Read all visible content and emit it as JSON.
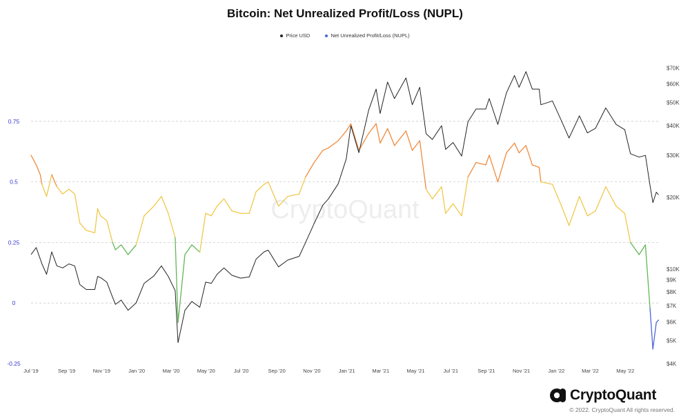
{
  "title": "Bitcoin: Net Unrealized Profit/Loss (NUPL)",
  "legend": [
    {
      "label": "Price USD",
      "color": "#222222"
    },
    {
      "label": "Net Unrealized Profit/Loss (NUPL)",
      "color": "#4a66d6"
    }
  ],
  "watermark": "CryptoQuant",
  "logo_text": "CryptoQuant",
  "logo_icon": "cryptoquant-logo-icon",
  "copyright": "© 2022. CryptoQuant All rights reserved.",
  "colors": {
    "price_line": "#222222",
    "nupl_orange": "#f08a3c",
    "nupl_yellow": "#f0c84a",
    "nupl_green": "#62b556",
    "nupl_blue": "#4a66d6",
    "left_axis_labels": "#3b3bd0",
    "grid": "#cccccc"
  },
  "chart_data": {
    "type": "line",
    "title": "Bitcoin: Net Unrealized Profit/Loss (NUPL)",
    "x_axis": {
      "type": "date",
      "range": [
        "2019-07-01",
        "2022-07-01"
      ],
      "ticks": [
        "Jul '19",
        "Sep '19",
        "Nov '19",
        "Jan '20",
        "Mar '20",
        "May '20",
        "Jul '20",
        "Sep '20",
        "Nov '20",
        "Jan '21",
        "Mar '21",
        "May '21",
        "Jul '21",
        "Sep '21",
        "Nov '21",
        "Jan '22",
        "Mar '22",
        "May '22"
      ]
    },
    "y_left": {
      "label": "",
      "range": [
        -0.25,
        1.0
      ],
      "ticks": [
        "0.75",
        "0.5",
        "0.25",
        "0",
        "-0.25"
      ]
    },
    "y_right": {
      "label": "",
      "scale": "log",
      "range": [
        4000,
        75000
      ],
      "ticks": [
        "$70K",
        "$60K",
        "$50K",
        "$40K",
        "$30K",
        "$20K",
        "$10K",
        "$9K",
        "$8K",
        "$7K",
        "$6K",
        "$5K",
        "$4K"
      ]
    },
    "grid": "horizontal dashed",
    "legend_position": "top-center",
    "nupl_color_zones": [
      {
        "from": -1,
        "to": 0,
        "color": "blue"
      },
      {
        "from": 0,
        "to": 0.25,
        "color": "green"
      },
      {
        "from": 0.25,
        "to": 0.5,
        "color": "yellow"
      },
      {
        "from": 0.5,
        "to": 0.75,
        "color": "orange"
      }
    ],
    "series": [
      {
        "name": "Price USD",
        "axis": "right",
        "points": [
          [
            "2019-07-01",
            11500
          ],
          [
            "2019-07-10",
            12300
          ],
          [
            "2019-07-20",
            10500
          ],
          [
            "2019-07-28",
            9500
          ],
          [
            "2019-08-06",
            11800
          ],
          [
            "2019-08-15",
            10300
          ],
          [
            "2019-08-25",
            10100
          ],
          [
            "2019-09-05",
            10500
          ],
          [
            "2019-09-15",
            10300
          ],
          [
            "2019-09-24",
            8600
          ],
          [
            "2019-10-05",
            8200
          ],
          [
            "2019-10-20",
            8200
          ],
          [
            "2019-10-25",
            9300
          ],
          [
            "2019-10-30",
            9200
          ],
          [
            "2019-11-10",
            8800
          ],
          [
            "2019-11-20",
            7600
          ],
          [
            "2019-11-25",
            7100
          ],
          [
            "2019-12-05",
            7400
          ],
          [
            "2019-12-17",
            6700
          ],
          [
            "2019-12-31",
            7200
          ],
          [
            "2020-01-14",
            8700
          ],
          [
            "2020-01-31",
            9350
          ],
          [
            "2020-02-13",
            10300
          ],
          [
            "2020-02-25",
            9300
          ],
          [
            "2020-03-08",
            8100
          ],
          [
            "2020-03-13",
            4900
          ],
          [
            "2020-03-25",
            6700
          ],
          [
            "2020-04-06",
            7300
          ],
          [
            "2020-04-20",
            6900
          ],
          [
            "2020-04-30",
            8800
          ],
          [
            "2020-05-10",
            8700
          ],
          [
            "2020-05-20",
            9500
          ],
          [
            "2020-06-01",
            10100
          ],
          [
            "2020-06-15",
            9400
          ],
          [
            "2020-06-30",
            9150
          ],
          [
            "2020-07-15",
            9250
          ],
          [
            "2020-07-27",
            11000
          ],
          [
            "2020-08-10",
            11800
          ],
          [
            "2020-08-17",
            12000
          ],
          [
            "2020-09-04",
            10200
          ],
          [
            "2020-09-20",
            10900
          ],
          [
            "2020-10-10",
            11300
          ],
          [
            "2020-10-21",
            12900
          ],
          [
            "2020-11-05",
            15500
          ],
          [
            "2020-11-20",
            18500
          ],
          [
            "2020-11-30",
            19700
          ],
          [
            "2020-12-17",
            22800
          ],
          [
            "2020-12-31",
            29000
          ],
          [
            "2021-01-08",
            40000
          ],
          [
            "2021-01-22",
            30800
          ],
          [
            "2021-02-08",
            46500
          ],
          [
            "2021-02-21",
            57000
          ],
          [
            "2021-02-28",
            45000
          ],
          [
            "2021-03-13",
            61000
          ],
          [
            "2021-03-25",
            52000
          ],
          [
            "2021-04-14",
            63500
          ],
          [
            "2021-04-25",
            49000
          ],
          [
            "2021-05-08",
            58000
          ],
          [
            "2021-05-19",
            37000
          ],
          [
            "2021-05-30",
            35000
          ],
          [
            "2021-06-15",
            40000
          ],
          [
            "2021-06-22",
            31800
          ],
          [
            "2021-07-05",
            34000
          ],
          [
            "2021-07-20",
            29800
          ],
          [
            "2021-07-31",
            41500
          ],
          [
            "2021-08-14",
            47000
          ],
          [
            "2021-08-31",
            47000
          ],
          [
            "2021-09-06",
            52000
          ],
          [
            "2021-09-21",
            40500
          ],
          [
            "2021-10-06",
            55000
          ],
          [
            "2021-10-20",
            65000
          ],
          [
            "2021-10-28",
            58000
          ],
          [
            "2021-11-09",
            67500
          ],
          [
            "2021-11-20",
            57000
          ],
          [
            "2021-12-02",
            57000
          ],
          [
            "2021-12-05",
            49000
          ],
          [
            "2021-12-25",
            50800
          ],
          [
            "2022-01-10",
            41800
          ],
          [
            "2022-01-23",
            35500
          ],
          [
            "2022-02-10",
            44000
          ],
          [
            "2022-02-24",
            37300
          ],
          [
            "2022-03-10",
            39000
          ],
          [
            "2022-03-28",
            47500
          ],
          [
            "2022-04-15",
            40500
          ],
          [
            "2022-04-30",
            38500
          ],
          [
            "2022-05-10",
            30500
          ],
          [
            "2022-05-25",
            29500
          ],
          [
            "2022-06-05",
            30000
          ],
          [
            "2022-06-13",
            22500
          ],
          [
            "2022-06-18",
            19000
          ],
          [
            "2022-06-24",
            21000
          ],
          [
            "2022-06-28",
            20500
          ]
        ]
      },
      {
        "name": "Net Unrealized Profit/Loss (NUPL)",
        "axis": "left",
        "points": [
          [
            "2019-07-01",
            0.61
          ],
          [
            "2019-07-10",
            0.57
          ],
          [
            "2019-07-17",
            0.53
          ],
          [
            "2019-07-20",
            0.49
          ],
          [
            "2019-07-28",
            0.44
          ],
          [
            "2019-08-06",
            0.53
          ],
          [
            "2019-08-15",
            0.48
          ],
          [
            "2019-08-25",
            0.45
          ],
          [
            "2019-09-05",
            0.47
          ],
          [
            "2019-09-15",
            0.45
          ],
          [
            "2019-09-24",
            0.33
          ],
          [
            "2019-10-05",
            0.3
          ],
          [
            "2019-10-20",
            0.29
          ],
          [
            "2019-10-25",
            0.39
          ],
          [
            "2019-10-30",
            0.36
          ],
          [
            "2019-11-10",
            0.34
          ],
          [
            "2019-11-20",
            0.25
          ],
          [
            "2019-11-25",
            0.22
          ],
          [
            "2019-12-05",
            0.24
          ],
          [
            "2019-12-17",
            0.2
          ],
          [
            "2019-12-31",
            0.24
          ],
          [
            "2020-01-14",
            0.36
          ],
          [
            "2020-01-31",
            0.4
          ],
          [
            "2020-02-13",
            0.44
          ],
          [
            "2020-02-25",
            0.37
          ],
          [
            "2020-03-08",
            0.27
          ],
          [
            "2020-03-13",
            -0.08
          ],
          [
            "2020-03-25",
            0.2
          ],
          [
            "2020-04-06",
            0.24
          ],
          [
            "2020-04-20",
            0.21
          ],
          [
            "2020-04-30",
            0.37
          ],
          [
            "2020-05-10",
            0.36
          ],
          [
            "2020-05-20",
            0.4
          ],
          [
            "2020-06-01",
            0.43
          ],
          [
            "2020-06-15",
            0.38
          ],
          [
            "2020-06-30",
            0.37
          ],
          [
            "2020-07-15",
            0.37
          ],
          [
            "2020-07-27",
            0.46
          ],
          [
            "2020-08-10",
            0.49
          ],
          [
            "2020-08-17",
            0.5
          ],
          [
            "2020-09-04",
            0.4
          ],
          [
            "2020-09-20",
            0.44
          ],
          [
            "2020-10-10",
            0.45
          ],
          [
            "2020-10-21",
            0.52
          ],
          [
            "2020-11-05",
            0.58
          ],
          [
            "2020-11-20",
            0.63
          ],
          [
            "2020-11-30",
            0.64
          ],
          [
            "2020-12-17",
            0.67
          ],
          [
            "2020-12-31",
            0.71
          ],
          [
            "2021-01-08",
            0.74
          ],
          [
            "2021-01-22",
            0.63
          ],
          [
            "2021-02-08",
            0.7
          ],
          [
            "2021-02-21",
            0.74
          ],
          [
            "2021-02-28",
            0.66
          ],
          [
            "2021-03-13",
            0.72
          ],
          [
            "2021-03-25",
            0.65
          ],
          [
            "2021-04-14",
            0.71
          ],
          [
            "2021-04-25",
            0.63
          ],
          [
            "2021-05-08",
            0.67
          ],
          [
            "2021-05-19",
            0.47
          ],
          [
            "2021-05-30",
            0.43
          ],
          [
            "2021-06-15",
            0.48
          ],
          [
            "2021-06-22",
            0.37
          ],
          [
            "2021-07-05",
            0.41
          ],
          [
            "2021-07-20",
            0.36
          ],
          [
            "2021-07-31",
            0.52
          ],
          [
            "2021-08-14",
            0.58
          ],
          [
            "2021-08-31",
            0.57
          ],
          [
            "2021-09-06",
            0.61
          ],
          [
            "2021-09-21",
            0.5
          ],
          [
            "2021-10-06",
            0.62
          ],
          [
            "2021-10-20",
            0.66
          ],
          [
            "2021-10-28",
            0.62
          ],
          [
            "2021-11-09",
            0.65
          ],
          [
            "2021-11-20",
            0.57
          ],
          [
            "2021-12-02",
            0.56
          ],
          [
            "2021-12-05",
            0.5
          ],
          [
            "2021-12-25",
            0.49
          ],
          [
            "2022-01-10",
            0.4
          ],
          [
            "2022-01-23",
            0.32
          ],
          [
            "2022-02-10",
            0.44
          ],
          [
            "2022-02-24",
            0.36
          ],
          [
            "2022-03-10",
            0.38
          ],
          [
            "2022-03-28",
            0.48
          ],
          [
            "2022-04-15",
            0.4
          ],
          [
            "2022-04-30",
            0.37
          ],
          [
            "2022-05-10",
            0.25
          ],
          [
            "2022-05-25",
            0.2
          ],
          [
            "2022-06-05",
            0.24
          ],
          [
            "2022-06-13",
            -0.02
          ],
          [
            "2022-06-18",
            -0.19
          ],
          [
            "2022-06-24",
            -0.08
          ],
          [
            "2022-06-28",
            -0.07
          ]
        ]
      }
    ]
  }
}
